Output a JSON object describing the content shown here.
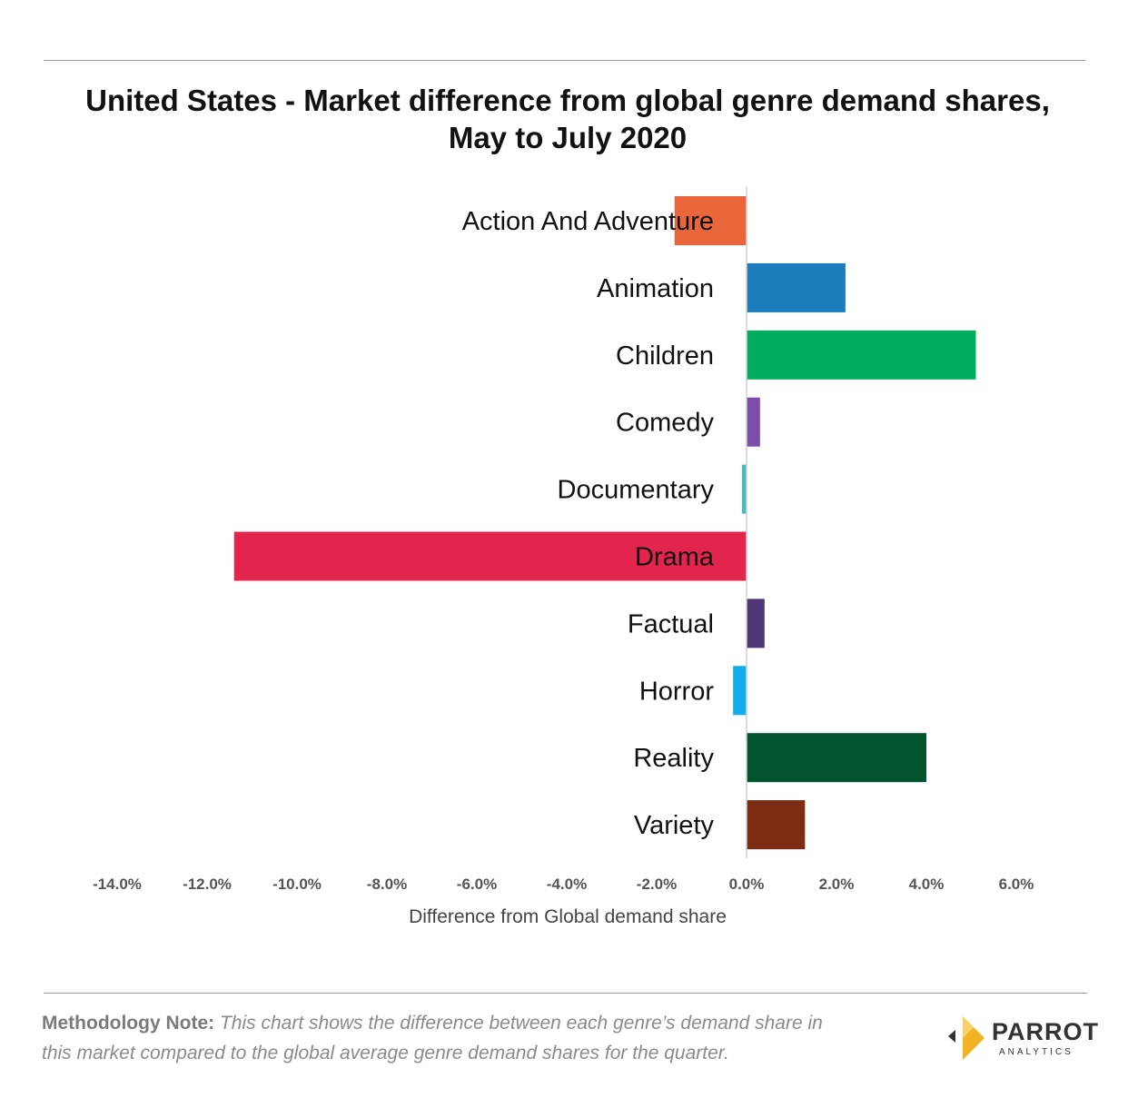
{
  "title": "United States - Market difference from global genre demand shares, May to July 2020",
  "axis_title": "Difference from Global demand share",
  "note": {
    "lead": "Methodology Note:",
    "text": "This chart shows the difference between each genre’s demand share in this market compared to the global average genre demand shares for the quarter."
  },
  "logo": {
    "name": "PARROT",
    "sub": "ANALYTICS"
  },
  "chart_data": {
    "type": "bar",
    "orientation": "horizontal",
    "title": "United States - Market difference from global genre demand shares, May to July 2020",
    "xlabel": "Difference from Global demand share",
    "ylabel": "",
    "xlim": [
      -14,
      6
    ],
    "grid": false,
    "legend": "none",
    "categories": [
      "Action And Adventure",
      "Animation",
      "Children",
      "Comedy",
      "Documentary",
      "Drama",
      "Factual",
      "Horror",
      "Reality",
      "Variety"
    ],
    "values": [
      -1.6,
      2.2,
      5.1,
      0.3,
      -0.1,
      -11.4,
      0.4,
      -0.3,
      4.0,
      1.3
    ],
    "colors": [
      "#E8663A",
      "#1C7CBC",
      "#00AD5E",
      "#7B4FA8",
      "#3EBFBF",
      "#E3254D",
      "#4E3575",
      "#11AEEE",
      "#02542F",
      "#7D2C14"
    ],
    "ticks": [
      -14,
      -12,
      -10,
      -8,
      -6,
      -4,
      -2,
      0,
      2,
      4,
      6
    ],
    "tick_labels": [
      "-14.0%",
      "-12.0%",
      "-10.0%",
      "-8.0%",
      "-6.0%",
      "-4.0%",
      "-2.0%",
      "0.0%",
      "2.0%",
      "4.0%",
      "6.0%"
    ]
  }
}
